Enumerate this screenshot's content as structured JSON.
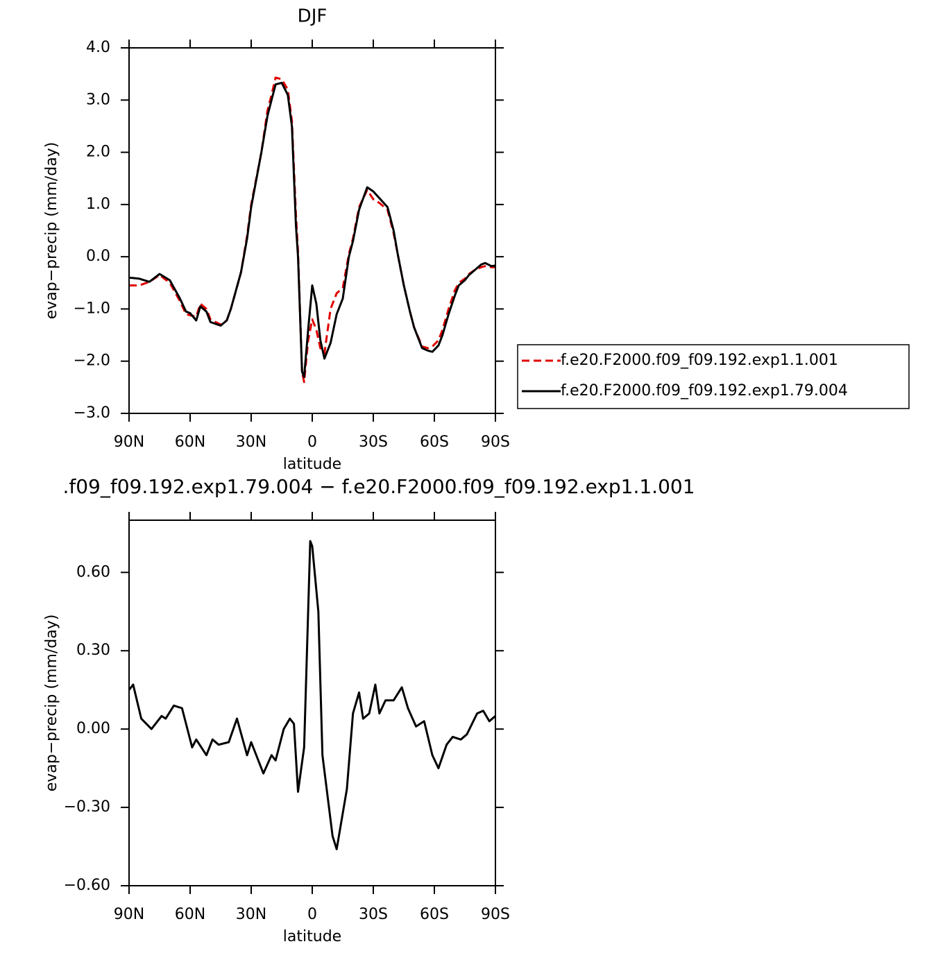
{
  "chart_data": [
    {
      "type": "line",
      "title": "DJF",
      "xlabel": "latitude",
      "ylabel": "evap−precip (mm/day)",
      "x": [
        90,
        85,
        80,
        75,
        70,
        65,
        62,
        60,
        57,
        55,
        52,
        50,
        45,
        42,
        40,
        35,
        32,
        30,
        25,
        22,
        20,
        18,
        15,
        12,
        10,
        8,
        7,
        5,
        4,
        2,
        0,
        -2,
        -4,
        -6,
        -9,
        -12,
        -15,
        -18,
        -20,
        -23,
        -27,
        -30,
        -33,
        -37,
        -40,
        -42,
        -45,
        -48,
        -50,
        -54,
        -57,
        -59,
        -62,
        -64,
        -67,
        -70,
        -72,
        -75,
        -77,
        -80,
        -83,
        -85,
        -88,
        -90
      ],
      "xlim": [
        90,
        -90
      ],
      "xticks": [
        {
          "value": 90,
          "label": "90N"
        },
        {
          "value": 60,
          "label": "60N"
        },
        {
          "value": 30,
          "label": "30N"
        },
        0,
        {
          "value": -30,
          "label": "30S"
        },
        {
          "value": -60,
          "label": "60S"
        },
        {
          "value": -90,
          "label": "90S"
        }
      ],
      "ylim": [
        -3,
        4
      ],
      "yticks": [
        {
          "value": 4,
          "label": "4.0"
        },
        {
          "value": 3,
          "label": "3.0"
        },
        {
          "value": 2,
          "label": "2.0"
        },
        {
          "value": 1,
          "label": "1.0"
        },
        {
          "value": 0,
          "label": "0.0"
        },
        {
          "value": -1,
          "label": "−1.0"
        },
        {
          "value": -2,
          "label": "−2.0"
        },
        {
          "value": -3,
          "label": "−3.0"
        }
      ],
      "legend": "right",
      "series": [
        {
          "name": "f.e20.F2000.f09_f09.192.exp1.1.001",
          "color": "#e00000",
          "dash": true,
          "values": [
            -0.55,
            -0.55,
            -0.48,
            -0.35,
            -0.5,
            -0.85,
            -1.1,
            -1.12,
            -1.15,
            -0.9,
            -1.0,
            -1.2,
            -1.3,
            -1.22,
            -1.0,
            -0.3,
            0.4,
            1.0,
            2.0,
            2.8,
            3.1,
            3.43,
            3.4,
            3.2,
            2.6,
            0.8,
            0.1,
            -2.2,
            -2.4,
            -1.6,
            -1.2,
            -1.4,
            -1.75,
            -1.85,
            -1.0,
            -0.7,
            -0.6,
            0.05,
            0.35,
            0.95,
            1.28,
            1.1,
            1.03,
            0.9,
            0.45,
            0.05,
            -0.55,
            -1.05,
            -1.35,
            -1.72,
            -1.75,
            -1.72,
            -1.6,
            -1.4,
            -1.0,
            -0.65,
            -0.5,
            -0.42,
            -0.33,
            -0.25,
            -0.2,
            -0.18,
            -0.2,
            -0.2
          ]
        },
        {
          "name": "f.e20.F2000.f09_f09.192.exp1.79.004",
          "color": "#000000",
          "dash": false,
          "values": [
            -0.4,
            -0.42,
            -0.48,
            -0.33,
            -0.45,
            -0.8,
            -1.05,
            -1.08,
            -1.22,
            -0.95,
            -1.05,
            -1.25,
            -1.32,
            -1.22,
            -1.0,
            -0.3,
            0.35,
            0.95,
            2.0,
            2.7,
            3.0,
            3.3,
            3.33,
            3.1,
            2.5,
            0.6,
            0.0,
            -2.2,
            -2.3,
            -1.4,
            -0.55,
            -0.9,
            -1.6,
            -1.95,
            -1.65,
            -1.1,
            -0.8,
            0.0,
            0.3,
            0.9,
            1.33,
            1.25,
            1.12,
            0.95,
            0.5,
            0.05,
            -0.55,
            -1.05,
            -1.35,
            -1.75,
            -1.8,
            -1.82,
            -1.7,
            -1.5,
            -1.1,
            -0.75,
            -0.55,
            -0.45,
            -0.35,
            -0.25,
            -0.15,
            -0.12,
            -0.18,
            -0.17
          ]
        }
      ]
    },
    {
      "type": "line",
      "title": ".f09_f09.192.exp1.79.004 − f.e20.F2000.f09_f09.192.exp1.1.001",
      "xlabel": "latitude",
      "ylabel": "evap−precip (mm/day)",
      "x": [
        90,
        88,
        84,
        79,
        74,
        72,
        68,
        64,
        59,
        57,
        52,
        49,
        46,
        41,
        37,
        32,
        30,
        24,
        20,
        18,
        14,
        11,
        9,
        7,
        4,
        1,
        0,
        -3,
        -5,
        -10,
        -12,
        -17,
        -20,
        -23,
        -25,
        -28,
        -31,
        -33,
        -36,
        -40,
        -44,
        -47,
        -51,
        -55,
        -59,
        -62,
        -66,
        -69,
        -73,
        -76,
        -81,
        -84,
        -87,
        -90
      ],
      "values": [
        0.15,
        0.17,
        0.04,
        0.0,
        0.05,
        0.04,
        0.09,
        0.08,
        -0.07,
        -0.04,
        -0.1,
        -0.04,
        -0.06,
        -0.05,
        0.04,
        -0.1,
        -0.05,
        -0.17,
        -0.1,
        -0.12,
        0.0,
        0.04,
        0.02,
        -0.24,
        -0.07,
        0.72,
        0.7,
        0.45,
        -0.1,
        -0.41,
        -0.46,
        -0.23,
        0.06,
        0.14,
        0.04,
        0.06,
        0.17,
        0.06,
        0.11,
        0.11,
        0.16,
        0.08,
        0.01,
        0.03,
        -0.1,
        -0.15,
        -0.06,
        -0.03,
        -0.04,
        -0.02,
        0.06,
        0.07,
        0.03,
        0.05
      ],
      "color": "#000000",
      "xlim": [
        90,
        -90
      ],
      "xticks": [
        {
          "value": 90,
          "label": "90N"
        },
        {
          "value": 60,
          "label": "60N"
        },
        {
          "value": 30,
          "label": "30N"
        },
        0,
        {
          "value": -30,
          "label": "30S"
        },
        {
          "value": -60,
          "label": "60S"
        },
        {
          "value": -90,
          "label": "90S"
        }
      ],
      "ylim": [
        -0.6,
        0.8
      ],
      "yticks": [
        {
          "value": 0.6,
          "label": "0.60"
        },
        {
          "value": 0.3,
          "label": "0.30"
        },
        {
          "value": 0,
          "label": "0.00"
        },
        {
          "value": -0.3,
          "label": "−0.30"
        },
        {
          "value": -0.6,
          "label": "−0.60"
        }
      ]
    }
  ]
}
